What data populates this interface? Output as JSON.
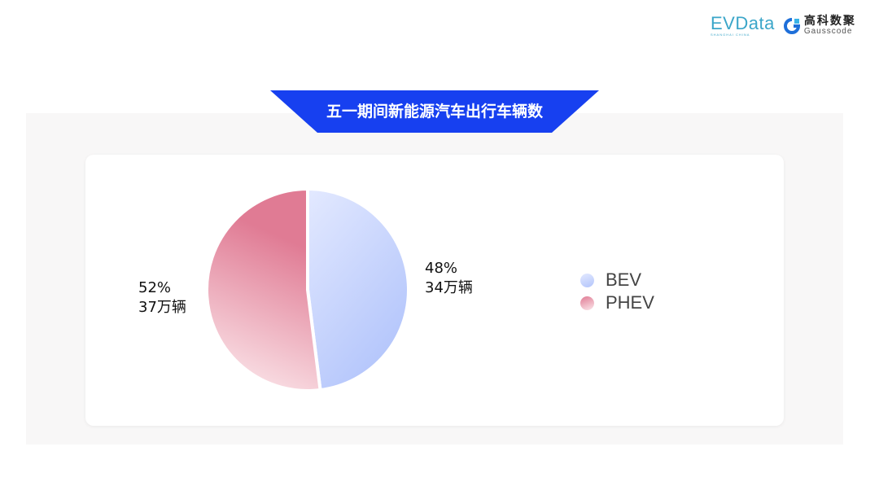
{
  "logos": {
    "evdata": "EVData",
    "evdata_sub": "SHANGHAI CHINA",
    "gauss_cn": "高科数聚",
    "gauss_en": "Gausscode"
  },
  "chart_data": {
    "type": "pie",
    "title": "五一期间新能源汽车出行车辆数",
    "slices": [
      {
        "name": "BEV",
        "percent": 48,
        "label_pct": "48%",
        "label_value": "34万辆",
        "color_start": "#e3e9ff",
        "color_end": "#b3c5fb"
      },
      {
        "name": "PHEV",
        "percent": 52,
        "label_pct": "52%",
        "label_value": "37万辆",
        "color_start": "#e07b94",
        "color_end": "#fbe6ea"
      }
    ],
    "legend_position": "right"
  },
  "colors": {
    "banner": "#1740f0",
    "panel": "#f8f7f7"
  }
}
